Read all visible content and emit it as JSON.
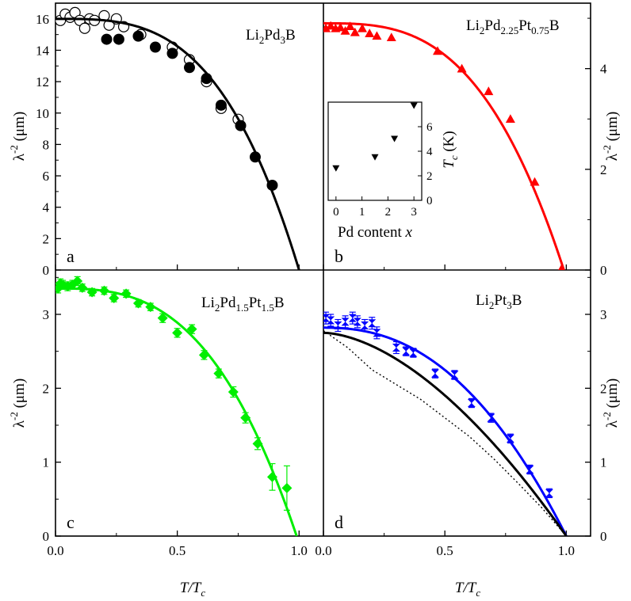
{
  "x_axis_label": {
    "main": "T/T",
    "sub": "c"
  },
  "chart_data": [
    {
      "type": "scatter",
      "panel_letter": "a",
      "compound": [
        {
          "t": "Li"
        },
        {
          "t": "2",
          "sub": true
        },
        {
          "t": "Pd"
        },
        {
          "t": "3",
          "sub": true
        },
        {
          "t": "B"
        }
      ],
      "xlim": [
        0,
        1.1
      ],
      "ylim": [
        0,
        17
      ],
      "x_ticks": [
        0.0,
        0.5,
        1.0
      ],
      "x_tick_labels": [
        "0.0",
        "0.5",
        "1.0"
      ],
      "y_ticks": [
        0,
        2,
        4,
        6,
        8,
        10,
        12,
        14,
        16
      ],
      "y_tick_labels": [
        "0",
        "2",
        "4",
        "6",
        "8",
        "10",
        "12",
        "14",
        "16"
      ],
      "ylabel": {
        "main": "λ",
        "sup": "-2",
        "unit": " (μm)"
      },
      "series": [
        {
          "marker": "circle-open",
          "color": "#000000",
          "x": [
            0.02,
            0.04,
            0.06,
            0.08,
            0.1,
            0.12,
            0.14,
            0.16,
            0.2,
            0.22,
            0.25,
            0.28,
            0.35,
            0.48,
            0.55,
            0.62,
            0.68,
            0.75
          ],
          "y": [
            15.9,
            16.3,
            16.1,
            16.4,
            15.9,
            15.4,
            16.0,
            15.9,
            16.2,
            15.6,
            16.0,
            15.5,
            15.0,
            14.2,
            13.4,
            12.0,
            10.3,
            9.6
          ]
        },
        {
          "marker": "circle-filled",
          "color": "#000000",
          "x": [
            0.21,
            0.26,
            0.34,
            0.41,
            0.48,
            0.55,
            0.62,
            0.68,
            0.76,
            0.82,
            0.89
          ],
          "y": [
            14.7,
            14.7,
            14.9,
            14.2,
            13.8,
            12.9,
            12.2,
            10.5,
            9.2,
            7.2,
            5.4
          ]
        },
        {
          "marker": "line",
          "color": "#000000",
          "fit": {
            "amp": 16.0,
            "tc": 1.0,
            "p": 3.2
          }
        }
      ]
    },
    {
      "type": "scatter",
      "panel_letter": "b",
      "compound": [
        {
          "t": "Li"
        },
        {
          "t": "2",
          "sub": true
        },
        {
          "t": "Pd"
        },
        {
          "t": "2.25",
          "sub": true
        },
        {
          "t": "Pt"
        },
        {
          "t": "0.75",
          "sub": true
        },
        {
          "t": "B"
        }
      ],
      "xlim": [
        0,
        1.1
      ],
      "ylim": [
        0,
        5.3
      ],
      "x_ticks": [
        0.0,
        0.5,
        1.0
      ],
      "x_tick_labels": [
        "0.0",
        "0.5",
        "1.0"
      ],
      "y_ticks": [
        0,
        2,
        4
      ],
      "y_tick_labels": [
        "0",
        "2",
        "4"
      ],
      "ylabel": {
        "main": "λ",
        "sup": "-2",
        "unit": " (μm)"
      },
      "series": [
        {
          "marker": "triangle-up",
          "color": "#ff0000",
          "x": [
            0.01,
            0.03,
            0.05,
            0.07,
            0.09,
            0.11,
            0.13,
            0.16,
            0.19,
            0.22,
            0.28,
            0.47,
            0.57,
            0.68,
            0.77,
            0.87,
            0.98
          ],
          "y": [
            4.8,
            4.85,
            4.8,
            4.82,
            4.75,
            4.84,
            4.72,
            4.8,
            4.7,
            4.65,
            4.62,
            4.35,
            4.0,
            3.55,
            3.0,
            1.75,
            0.02
          ]
        },
        {
          "marker": "line",
          "color": "#ff0000",
          "fit": {
            "amp": 4.9,
            "tc": 0.99,
            "p": 3.0
          }
        }
      ],
      "inset": {
        "type": "scatter",
        "xlabel_text": "Pd content ",
        "xlabel_var": "x",
        "ylabel_main": "T",
        "ylabel_sub": "c",
        "ylabel_unit": " (K)",
        "xlim": [
          -0.3,
          3.3
        ],
        "ylim": [
          0,
          8
        ],
        "x_ticks": [
          0,
          1,
          2,
          3
        ],
        "x_tick_labels": [
          "0",
          "1",
          "2",
          "3"
        ],
        "y_ticks": [
          0,
          2,
          4,
          6
        ],
        "y_tick_labels": [
          "0",
          "2",
          "4",
          "6"
        ],
        "marker": "triangle-down",
        "color": "#000000",
        "x": [
          0,
          1.5,
          2.25,
          3
        ],
        "y": [
          2.6,
          3.5,
          5.0,
          7.7
        ]
      }
    },
    {
      "type": "scatter",
      "panel_letter": "c",
      "compound": [
        {
          "t": "Li"
        },
        {
          "t": "2",
          "sub": true
        },
        {
          "t": "Pd"
        },
        {
          "t": "1.5",
          "sub": true
        },
        {
          "t": "Pt"
        },
        {
          "t": "1.5",
          "sub": true
        },
        {
          "t": "B"
        }
      ],
      "xlim": [
        0,
        1.1
      ],
      "ylim": [
        0,
        3.6
      ],
      "x_ticks": [
        0.0,
        0.5,
        1.0
      ],
      "x_tick_labels": [
        "0.0",
        "0.5",
        "1.0"
      ],
      "y_ticks": [
        0,
        1,
        2,
        3
      ],
      "y_tick_labels": [
        "0",
        "1",
        "2",
        "3"
      ],
      "ylabel": {
        "main": "λ",
        "sup": "-2",
        "unit": " (μm)"
      },
      "series": [
        {
          "marker": "diamond",
          "color": "#00ee00",
          "x": [
            0.01,
            0.02,
            0.03,
            0.05,
            0.07,
            0.09,
            0.11,
            0.15,
            0.2,
            0.24,
            0.29,
            0.34,
            0.39,
            0.44,
            0.5,
            0.56,
            0.61,
            0.67,
            0.73,
            0.78,
            0.83,
            0.89,
            0.95
          ],
          "y": [
            3.35,
            3.42,
            3.4,
            3.38,
            3.4,
            3.45,
            3.36,
            3.3,
            3.32,
            3.22,
            3.28,
            3.15,
            3.1,
            2.95,
            2.75,
            2.8,
            2.45,
            2.2,
            1.95,
            1.6,
            1.25,
            0.8,
            0.65
          ],
          "yerr": [
            0.06,
            0.06,
            0.06,
            0.06,
            0.06,
            0.06,
            0.05,
            0.05,
            0.05,
            0.05,
            0.05,
            0.05,
            0.05,
            0.06,
            0.06,
            0.06,
            0.06,
            0.06,
            0.07,
            0.07,
            0.08,
            0.18,
            0.3
          ]
        },
        {
          "marker": "line",
          "color": "#00ee00",
          "fit": {
            "amp": 3.35,
            "tc": 0.99,
            "p": 2.9
          }
        }
      ]
    },
    {
      "type": "scatter",
      "panel_letter": "d",
      "compound": [
        {
          "t": "Li"
        },
        {
          "t": "2",
          "sub": true
        },
        {
          "t": "Pt"
        },
        {
          "t": "3",
          "sub": true
        },
        {
          "t": "B"
        }
      ],
      "xlim": [
        0,
        1.1
      ],
      "ylim": [
        0,
        3.6
      ],
      "x_ticks": [
        0.0,
        0.5,
        1.0
      ],
      "x_tick_labels": [
        "0.0",
        "0.5",
        "1.0"
      ],
      "y_ticks": [
        0,
        1,
        2,
        3
      ],
      "y_tick_labels": [
        "0",
        "1",
        "2",
        "3"
      ],
      "ylabel": {
        "main": "λ",
        "sup": "-2",
        "unit": " (μm)"
      },
      "series": [
        {
          "marker": "hourglass",
          "color": "#0000ff",
          "x": [
            0.01,
            0.03,
            0.06,
            0.09,
            0.12,
            0.14,
            0.17,
            0.2,
            0.22,
            0.3,
            0.34,
            0.37,
            0.46,
            0.54,
            0.61,
            0.69,
            0.77,
            0.85,
            0.93
          ],
          "y": [
            2.95,
            2.92,
            2.85,
            2.9,
            2.95,
            2.9,
            2.85,
            2.88,
            2.75,
            2.55,
            2.5,
            2.48,
            2.2,
            2.18,
            1.8,
            1.6,
            1.32,
            0.9,
            0.58
          ],
          "yerr": [
            0.08,
            0.08,
            0.08,
            0.08,
            0.08,
            0.08,
            0.08,
            0.08,
            0.08,
            0.08,
            0.06,
            0.06,
            0.06,
            0.06,
            0.06,
            0.06,
            0.06,
            0.06,
            0.06
          ]
        },
        {
          "marker": "line",
          "color": "#0000ff",
          "fit": {
            "amp": 2.82,
            "tc": 1.0,
            "p": 2.3
          }
        },
        {
          "marker": "line",
          "color": "#000000",
          "fit": {
            "amp": 2.75,
            "tc": 1.0,
            "p": 1.7
          }
        },
        {
          "marker": "dotted",
          "color": "#000000",
          "x": [
            0.0,
            0.1,
            0.2,
            0.3,
            0.4,
            0.5,
            0.6,
            0.7,
            0.8,
            0.9,
            1.0
          ],
          "y": [
            2.78,
            2.55,
            2.25,
            2.05,
            1.85,
            1.6,
            1.35,
            1.05,
            0.72,
            0.38,
            0.0
          ]
        }
      ]
    }
  ]
}
